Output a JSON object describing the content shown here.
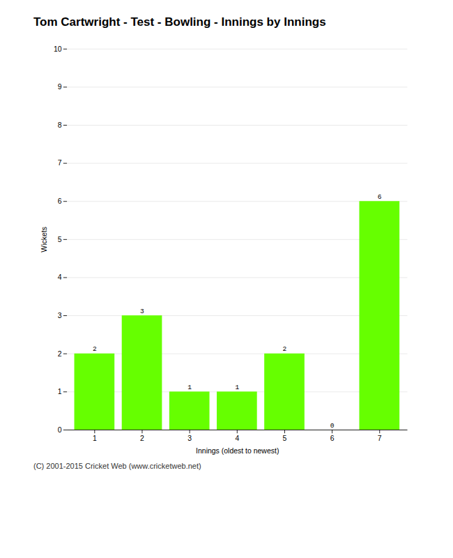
{
  "chart_data": {
    "type": "bar",
    "title": "Tom Cartwright - Test - Bowling - Innings by Innings",
    "xlabel": "Innings (oldest to newest)",
    "ylabel": "Wickets",
    "categories": [
      "1",
      "2",
      "3",
      "4",
      "5",
      "6",
      "7"
    ],
    "values": [
      2,
      3,
      1,
      1,
      2,
      0,
      6
    ],
    "color": "#66ff00",
    "ylim": [
      0,
      10
    ],
    "yticks": [
      0,
      1,
      2,
      3,
      4,
      5,
      6,
      7,
      8,
      9,
      10
    ],
    "grid": true,
    "data_labels": true,
    "caption": "(C) 2001-2015 Cricket Web (www.cricketweb.net)"
  }
}
